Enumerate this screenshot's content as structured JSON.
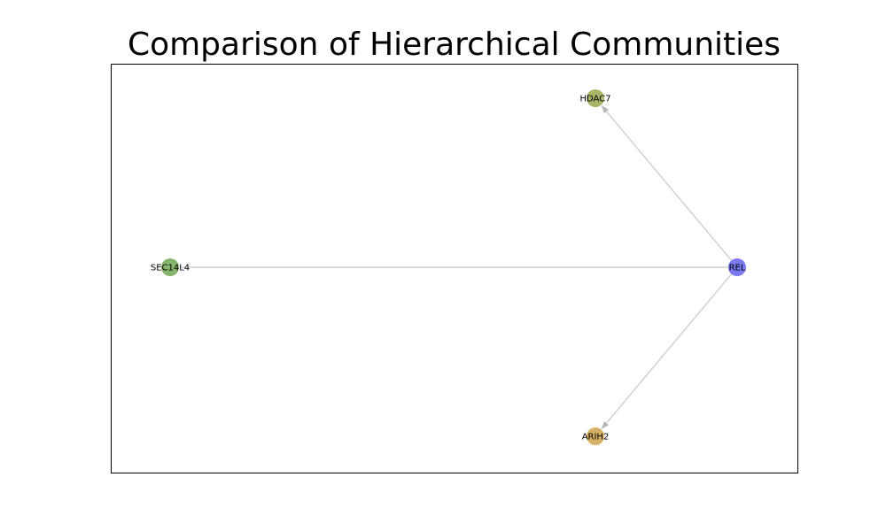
{
  "figure": {
    "title": "Comparison of Hierarchical Communities"
  },
  "graph": {
    "nodes": [
      {
        "id": "HDAC7",
        "label": "HDAC7",
        "color": "#a8b468"
      },
      {
        "id": "SEC14L4",
        "label": "SEC14L4",
        "color": "#86b46c"
      },
      {
        "id": "REL",
        "label": "REL",
        "color": "#7a7af2"
      },
      {
        "id": "ARIH2",
        "label": "ARIH2",
        "color": "#d6b064"
      }
    ],
    "edges": [
      {
        "source": "REL",
        "target": "HDAC7",
        "directed": true
      },
      {
        "source": "REL",
        "target": "SEC14L4",
        "directed": false
      },
      {
        "source": "REL",
        "target": "ARIH2",
        "directed": true
      }
    ],
    "edge_color": "#c8c8c8",
    "frame_color": "#000000"
  }
}
